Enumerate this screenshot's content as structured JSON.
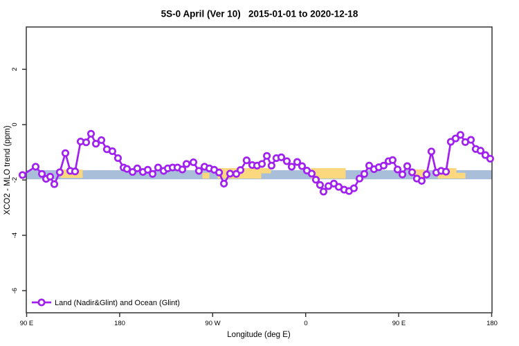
{
  "chart_data": {
    "type": "line",
    "title": "5S-0 April (Ver 10)   2015-01-01 to 2020-12-18",
    "xlabel": "Longitude (deg E)",
    "ylabel": "XCO2 - MLO trend (ppm)",
    "x_axis": {
      "tick_labels": [
        "90 E",
        "180",
        "90 W",
        "0",
        "90 E",
        "180"
      ],
      "tick_positions_deg": [
        0,
        90,
        180,
        270,
        360,
        450
      ],
      "range_deg": [
        0,
        450
      ]
    },
    "y_axis": {
      "tick_labels": [
        "2",
        "0",
        "-2",
        "-4",
        "-6"
      ],
      "ticks": [
        2,
        0,
        -2,
        -4,
        -6
      ],
      "range": [
        -6.8,
        3.53
      ],
      "grid": false
    },
    "legend": {
      "label": "Land (Nadir&Glint) and Ocean (Glint)",
      "position": "bottom-left"
    },
    "series": [
      {
        "name": "Land (Nadir&Glint) and Ocean (Glint)",
        "color": "#A020F0",
        "marker": "open-circle",
        "marker_fill": "#FFFFFF",
        "points": [
          [
            -4.0,
            -1.82
          ],
          [
            8.7,
            -1.52
          ],
          [
            14.7,
            -1.78
          ],
          [
            18.8,
            -1.96
          ],
          [
            22.8,
            -1.88
          ],
          [
            26.8,
            -2.15
          ],
          [
            32.1,
            -1.72
          ],
          [
            37.5,
            -1.03
          ],
          [
            42.2,
            -1.67
          ],
          [
            46.9,
            -1.69
          ],
          [
            52.2,
            -0.61
          ],
          [
            57.6,
            -0.64
          ],
          [
            62.3,
            -0.33
          ],
          [
            67.0,
            -0.69
          ],
          [
            72.3,
            -0.56
          ],
          [
            77.7,
            -0.89
          ],
          [
            83.0,
            -0.96
          ],
          [
            88.4,
            -1.21
          ],
          [
            93.8,
            -1.55
          ],
          [
            97.1,
            -1.6
          ],
          [
            102.5,
            -1.71
          ],
          [
            107.1,
            -1.58
          ],
          [
            112.5,
            -1.71
          ],
          [
            117.2,
            -1.63
          ],
          [
            121.9,
            -1.78
          ],
          [
            127.2,
            -1.55
          ],
          [
            132.6,
            -1.67
          ],
          [
            136.6,
            -1.58
          ],
          [
            141.3,
            -1.55
          ],
          [
            146.0,
            -1.55
          ],
          [
            150.7,
            -1.62
          ],
          [
            154.7,
            -1.42
          ],
          [
            161.4,
            -1.36
          ],
          [
            166.7,
            -1.67
          ],
          [
            172.1,
            -1.52
          ],
          [
            176.8,
            -1.58
          ],
          [
            181.5,
            -1.63
          ],
          [
            186.2,
            -1.73
          ],
          [
            190.9,
            -2.13
          ],
          [
            196.9,
            -1.77
          ],
          [
            202.9,
            -1.78
          ],
          [
            206.9,
            -1.64
          ],
          [
            212.9,
            -1.29
          ],
          [
            218.3,
            -1.46
          ],
          [
            223.0,
            -1.48
          ],
          [
            227.7,
            -1.42
          ],
          [
            232.4,
            -1.13
          ],
          [
            237.0,
            -1.48
          ],
          [
            241.7,
            -1.21
          ],
          [
            246.4,
            -1.18
          ],
          [
            251.8,
            -1.32
          ],
          [
            256.5,
            -1.52
          ],
          [
            261.8,
            -1.35
          ],
          [
            266.5,
            -1.5
          ],
          [
            271.2,
            -1.66
          ],
          [
            275.9,
            -1.77
          ],
          [
            279.9,
            -1.99
          ],
          [
            283.9,
            -2.18
          ],
          [
            287.3,
            -2.42
          ],
          [
            292.0,
            -2.22
          ],
          [
            297.3,
            -2.13
          ],
          [
            302.0,
            -2.25
          ],
          [
            307.3,
            -2.35
          ],
          [
            312.0,
            -2.4
          ],
          [
            316.7,
            -2.3
          ],
          [
            322.1,
            -1.95
          ],
          [
            326.8,
            -1.78
          ],
          [
            331.5,
            -1.48
          ],
          [
            336.1,
            -1.61
          ],
          [
            340.8,
            -1.54
          ],
          [
            345.5,
            -1.48
          ],
          [
            350.2,
            -1.32
          ],
          [
            354.2,
            -1.28
          ],
          [
            358.9,
            -1.62
          ],
          [
            363.6,
            -1.8
          ],
          [
            368.3,
            -1.5
          ],
          [
            373.0,
            -1.72
          ],
          [
            377.6,
            -1.95
          ],
          [
            382.3,
            -2.03
          ],
          [
            387.0,
            -1.8
          ],
          [
            391.7,
            -0.97
          ],
          [
            396.4,
            -1.73
          ],
          [
            401.1,
            -1.67
          ],
          [
            405.8,
            -1.7
          ],
          [
            410.4,
            -0.62
          ],
          [
            415.1,
            -0.5
          ],
          [
            419.8,
            -0.37
          ],
          [
            424.5,
            -0.63
          ],
          [
            429.9,
            -0.55
          ],
          [
            434.6,
            -0.88
          ],
          [
            439.2,
            -0.94
          ],
          [
            443.9,
            -1.1
          ],
          [
            448.6,
            -1.23
          ]
        ]
      }
    ],
    "surface_band": {
      "ocean_color": "#A9BFD9",
      "land_color": "#FBD77E",
      "value_top": -1.57,
      "value_bottom": -1.95,
      "ocean_extent_deg": [
        0,
        450
      ],
      "land_segments": [
        {
          "from_deg": 32.8,
          "to_deg": 54.2,
          "pos": "mid"
        },
        {
          "from_deg": 170.1,
          "to_deg": 176.8,
          "pos": "bottom"
        },
        {
          "from_deg": 184.8,
          "to_deg": 227.0,
          "pos": "full"
        },
        {
          "from_deg": 227.0,
          "to_deg": 236.4,
          "pos": "top"
        },
        {
          "from_deg": 275.2,
          "to_deg": 308.7,
          "pos": "full"
        },
        {
          "from_deg": 374.3,
          "to_deg": 385.0,
          "pos": "mid"
        },
        {
          "from_deg": 397.8,
          "to_deg": 415.9,
          "pos": "full"
        },
        {
          "from_deg": 415.9,
          "to_deg": 424.6,
          "pos": "bottom"
        }
      ]
    },
    "frame_color": "#333333"
  }
}
